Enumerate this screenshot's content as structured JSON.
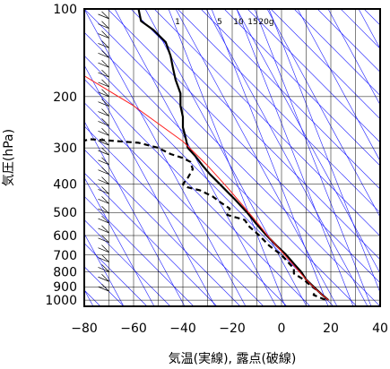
{
  "chart_data": {
    "type": "line",
    "title": "",
    "xlabel": "気温(実線), 露点(破線)",
    "ylabel": "気圧(hPa)",
    "xlim": [
      -80,
      40
    ],
    "ylim": [
      1050,
      100
    ],
    "y_scale": "log",
    "x_ticks": [
      "−80",
      "−60",
      "−40",
      "−20",
      "0",
      "20",
      "40"
    ],
    "y_ticks": [
      "100",
      "200",
      "300",
      "400",
      "500",
      "600",
      "700",
      "800",
      "900",
      "1000"
    ],
    "mixing_ratio_labels": [
      "1",
      "5",
      "10",
      "15",
      "20g"
    ],
    "series": [
      {
        "role": "temperature",
        "style": "solid",
        "color": "#000000",
        "points": [
          {
            "t": -58,
            "p": 100
          },
          {
            "t": -57,
            "p": 110
          },
          {
            "t": -52,
            "p": 118
          },
          {
            "t": -47,
            "p": 130
          },
          {
            "t": -45,
            "p": 145
          },
          {
            "t": -44,
            "p": 160
          },
          {
            "t": -43,
            "p": 175
          },
          {
            "t": -41,
            "p": 195
          },
          {
            "t": -41,
            "p": 215
          },
          {
            "t": -40,
            "p": 235
          },
          {
            "t": -40,
            "p": 255
          },
          {
            "t": -39,
            "p": 275
          },
          {
            "t": -38,
            "p": 300
          },
          {
            "t": -35,
            "p": 320
          },
          {
            "t": -32,
            "p": 345
          },
          {
            "t": -29,
            "p": 370
          },
          {
            "t": -25,
            "p": 400
          },
          {
            "t": -19,
            "p": 450
          },
          {
            "t": -14,
            "p": 500
          },
          {
            "t": -10,
            "p": 550
          },
          {
            "t": -6,
            "p": 600
          },
          {
            "t": -2,
            "p": 650
          },
          {
            "t": 2,
            "p": 700
          },
          {
            "t": 5,
            "p": 750
          },
          {
            "t": 8,
            "p": 800
          },
          {
            "t": 10,
            "p": 850
          },
          {
            "t": 13,
            "p": 900
          },
          {
            "t": 16,
            "p": 950
          },
          {
            "t": 19,
            "p": 1000
          }
        ]
      },
      {
        "role": "dewpoint",
        "style": "dashed",
        "color": "#000000",
        "points": [
          {
            "t": -81,
            "p": 285
          },
          {
            "t": -78,
            "p": 280
          },
          {
            "t": -70,
            "p": 283
          },
          {
            "t": -58,
            "p": 288
          },
          {
            "t": -50,
            "p": 300
          },
          {
            "t": -45,
            "p": 315
          },
          {
            "t": -40,
            "p": 325
          },
          {
            "t": -37,
            "p": 335
          },
          {
            "t": -36,
            "p": 355
          },
          {
            "t": -38,
            "p": 380
          },
          {
            "t": -40,
            "p": 400
          },
          {
            "t": -38,
            "p": 410
          },
          {
            "t": -33,
            "p": 420
          },
          {
            "t": -28,
            "p": 440
          },
          {
            "t": -25,
            "p": 460
          },
          {
            "t": -21,
            "p": 485
          },
          {
            "t": -22,
            "p": 510
          },
          {
            "t": -15,
            "p": 530
          },
          {
            "t": -13,
            "p": 560
          },
          {
            "t": -9,
            "p": 600
          },
          {
            "t": -5,
            "p": 650
          },
          {
            "t": 0,
            "p": 700
          },
          {
            "t": 2,
            "p": 730
          },
          {
            "t": 5,
            "p": 780
          },
          {
            "t": 5,
            "p": 810
          },
          {
            "t": 9,
            "p": 850
          },
          {
            "t": 11,
            "p": 880
          },
          {
            "t": 14,
            "p": 920
          },
          {
            "t": 13,
            "p": 960
          },
          {
            "t": 18,
            "p": 1000
          }
        ]
      },
      {
        "role": "parcel",
        "style": "solid",
        "color": "#ff2020",
        "points": [
          {
            "t": -85,
            "p": 160
          },
          {
            "t": -60,
            "p": 215
          },
          {
            "t": -40,
            "p": 285
          },
          {
            "t": -30,
            "p": 345
          },
          {
            "t": -22,
            "p": 410
          },
          {
            "t": -16,
            "p": 470
          },
          {
            "t": -10,
            "p": 540
          },
          {
            "t": -5,
            "p": 610
          },
          {
            "t": 0,
            "p": 680
          },
          {
            "t": 5,
            "p": 760
          },
          {
            "t": 10,
            "p": 850
          },
          {
            "t": 14,
            "p": 920
          },
          {
            "t": 19,
            "p": 1000
          }
        ]
      }
    ],
    "colors": {
      "axes": "#000000",
      "grid": "#000000",
      "adiabats": "#1a1aff",
      "parcel": "#ff2020"
    },
    "wind_barbs_side": "left",
    "grid": true
  }
}
